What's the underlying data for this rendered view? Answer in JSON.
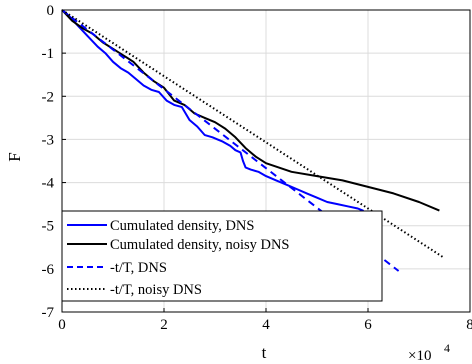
{
  "chart_data": {
    "type": "line",
    "xlabel": "t",
    "ylabel": "F",
    "x_exponent_label": "×10",
    "x_exponent": "4",
    "xlim": [
      0,
      8
    ],
    "ylim": [
      -7,
      0
    ],
    "xticks": [
      0,
      2,
      4,
      6,
      8
    ],
    "xtick_labels": [
      "0",
      "2",
      "4",
      "6",
      "8"
    ],
    "yticks": [
      0,
      -1,
      -2,
      -3,
      -4,
      -5,
      -6,
      -7
    ],
    "ytick_labels": [
      "0",
      "-1",
      "-2",
      "-3",
      "-4",
      "-5",
      "-6",
      "-7"
    ],
    "grid": true,
    "legend_position": "bottom-left",
    "colors": {
      "blue": "#0000ff",
      "black": "#000000"
    },
    "series": [
      {
        "name": "Cumulated density, DNS",
        "color": "#0000ff",
        "dash": "solid",
        "x": [
          0,
          0.15,
          0.3,
          0.5,
          0.7,
          0.85,
          1.0,
          1.15,
          1.3,
          1.45,
          1.6,
          1.75,
          1.9,
          2.05,
          2.2,
          2.35,
          2.5,
          2.65,
          2.8,
          2.95,
          3.05,
          3.15,
          3.3,
          3.4,
          3.5,
          3.55,
          3.6,
          3.7,
          3.85,
          4.0,
          4.2,
          4.4,
          4.6,
          4.8,
          5.0,
          5.2,
          5.4,
          5.6,
          5.8,
          5.9,
          5.95,
          6.0
        ],
        "y": [
          0,
          -0.15,
          -0.35,
          -0.6,
          -0.85,
          -1.0,
          -1.2,
          -1.35,
          -1.45,
          -1.6,
          -1.75,
          -1.85,
          -1.9,
          -2.1,
          -2.2,
          -2.25,
          -2.55,
          -2.7,
          -2.9,
          -2.95,
          -3.0,
          -3.05,
          -3.15,
          -3.25,
          -3.3,
          -3.5,
          -3.65,
          -3.7,
          -3.75,
          -3.85,
          -3.95,
          -4.05,
          -4.15,
          -4.25,
          -4.35,
          -4.45,
          -4.5,
          -4.55,
          -4.6,
          -4.65,
          -4.75,
          -4.8
        ]
      },
      {
        "name": "Cumulated density, noisy DNS",
        "color": "#000000",
        "dash": "solid",
        "x": [
          0,
          0.2,
          0.4,
          0.6,
          0.8,
          1.0,
          1.2,
          1.4,
          1.6,
          1.8,
          2.0,
          2.2,
          2.4,
          2.6,
          2.8,
          3.0,
          3.2,
          3.4,
          3.6,
          3.8,
          4.0,
          4.5,
          5.0,
          5.5,
          6.0,
          6.5,
          7.0,
          7.4
        ],
        "y": [
          0,
          -0.25,
          -0.42,
          -0.55,
          -0.75,
          -0.9,
          -1.05,
          -1.2,
          -1.45,
          -1.65,
          -1.8,
          -2.1,
          -2.2,
          -2.4,
          -2.5,
          -2.6,
          -2.75,
          -2.95,
          -3.2,
          -3.4,
          -3.55,
          -3.75,
          -3.85,
          -3.95,
          -4.1,
          -4.25,
          -4.45,
          -4.65
        ]
      },
      {
        "name": "-t/T, DNS",
        "color": "#0000ff",
        "dash": "dashed",
        "x": [
          0,
          6.6
        ],
        "y": [
          0,
          -6.05
        ]
      },
      {
        "name": "-t/T, noisy DNS",
        "color": "#000000",
        "dash": "dotted",
        "x": [
          0,
          7.5
        ],
        "y": [
          0,
          -5.75
        ]
      }
    ]
  }
}
